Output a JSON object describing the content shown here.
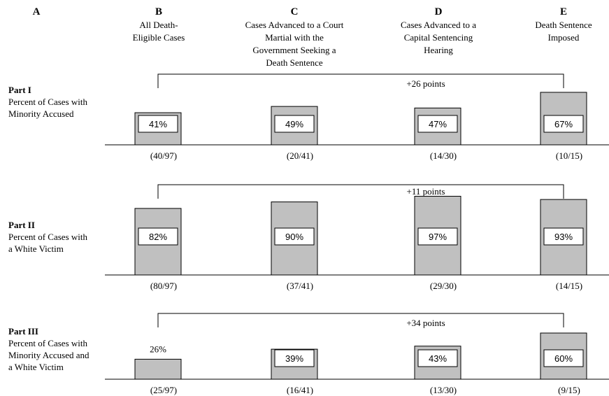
{
  "columns": [
    {
      "letter": "A",
      "title_lines": []
    },
    {
      "letter": "B",
      "title_lines": [
        "All Death-",
        "Eligible Cases"
      ]
    },
    {
      "letter": "C",
      "title_lines": [
        "Cases Advanced to a Court",
        "Martial with the",
        "Government Seeking a",
        "Death Sentence"
      ]
    },
    {
      "letter": "D",
      "title_lines": [
        "Cases Advanced to a",
        "Capital Sentencing",
        "Hearing"
      ]
    },
    {
      "letter": "E",
      "title_lines": [
        "Death Sentence",
        "Imposed"
      ]
    }
  ],
  "colors": {
    "bar_fill": "#c0c0c0",
    "bar_stroke": "#000000",
    "label_box": "#ffffff"
  },
  "chart_data": [
    {
      "type": "bar",
      "title_lines": [
        "Part I",
        "Percent of Cases with",
        "Minority Accused"
      ],
      "categories": [
        "B",
        "C",
        "D",
        "E"
      ],
      "values": [
        41,
        49,
        47,
        67
      ],
      "value_labels": [
        "41%",
        "49%",
        "47%",
        "67%"
      ],
      "fractions": [
        "(40/97)",
        "(20/41)",
        "(14/30)",
        "(10/15)"
      ],
      "change_label": "+26 points",
      "ylim": [
        0,
        100
      ]
    },
    {
      "type": "bar",
      "title_lines": [
        "Part II",
        "Percent of Cases with",
        "a White Victim"
      ],
      "categories": [
        "B",
        "C",
        "D",
        "E"
      ],
      "values": [
        82,
        90,
        97,
        93
      ],
      "value_labels": [
        "82%",
        "90%",
        "97%",
        "93%"
      ],
      "fractions": [
        "(80/97)",
        "(37/41)",
        "(29/30)",
        "(14/15)"
      ],
      "change_label": "+11 points",
      "ylim": [
        0,
        100
      ]
    },
    {
      "type": "bar",
      "title_lines": [
        "Part III",
        "Percent of Cases with",
        "Minority Accused and",
        "a White Victim"
      ],
      "categories": [
        "B",
        "C",
        "D",
        "E"
      ],
      "values": [
        26,
        39,
        43,
        60
      ],
      "value_labels": [
        "26%",
        "39%",
        "43%",
        "60%"
      ],
      "fractions": [
        "(25/97)",
        "(16/41)",
        "(13/30)",
        "(9/15)"
      ],
      "change_label": "+34 points",
      "ylim": [
        0,
        100
      ]
    }
  ]
}
